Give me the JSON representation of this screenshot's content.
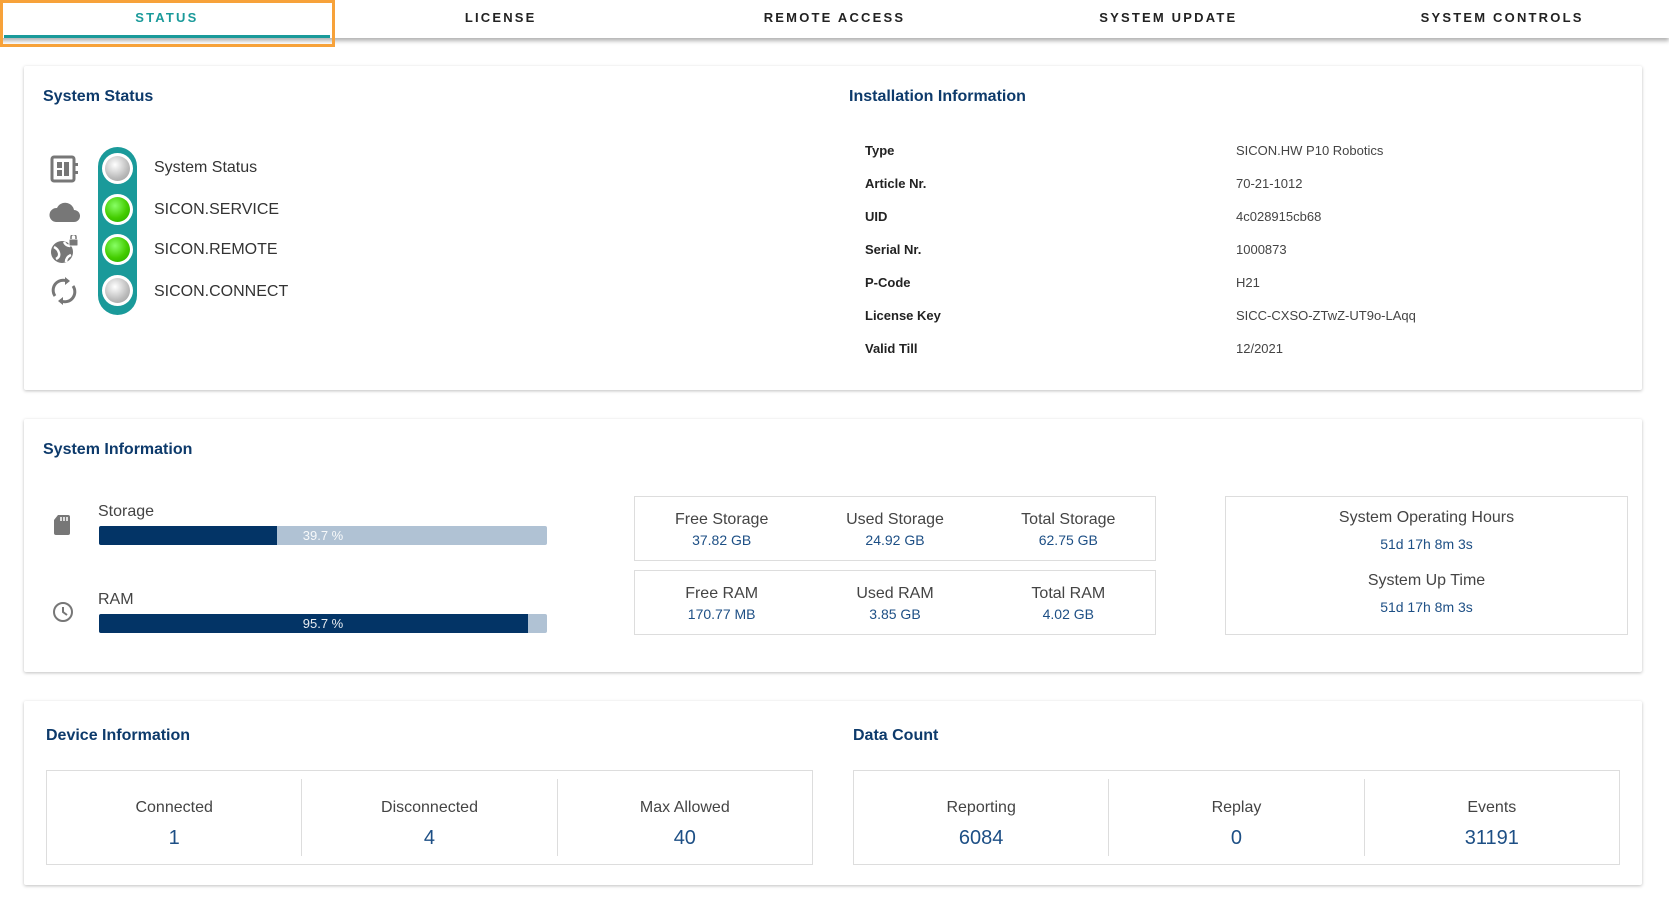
{
  "tabs": [
    {
      "label": "STATUS",
      "active": true
    },
    {
      "label": "LICENSE"
    },
    {
      "label": "REMOTE ACCESS"
    },
    {
      "label": "SYSTEM UPDATE"
    },
    {
      "label": "SYSTEM CONTROLS"
    }
  ],
  "system_status": {
    "title": "System Status",
    "items": [
      {
        "label": "System Status",
        "icon": "dashboard-icon",
        "state": "grey"
      },
      {
        "label": "SICON.SERVICE",
        "icon": "cloud-icon",
        "state": "green"
      },
      {
        "label": "SICON.REMOTE",
        "icon": "globe-lock-icon",
        "state": "green"
      },
      {
        "label": "SICON.CONNECT",
        "icon": "sync-icon",
        "state": "grey"
      }
    ]
  },
  "installation": {
    "title": "Installation Information",
    "rows": [
      {
        "label": "Type",
        "value": "SICON.HW P10 Robotics"
      },
      {
        "label": "Article Nr.",
        "value": "70-21-1012"
      },
      {
        "label": "UID",
        "value": "4c028915cb68"
      },
      {
        "label": "Serial Nr.",
        "value": "1000873"
      },
      {
        "label": "P-Code",
        "value": "H21"
      },
      {
        "label": "License Key",
        "value": "SICC-CXSO-ZTwZ-UT9o-LAqq"
      },
      {
        "label": "Valid Till",
        "value": "12/2021"
      }
    ]
  },
  "system_info": {
    "title": "System Information",
    "storage": {
      "label": "Storage",
      "percent": 39.7,
      "percent_text": "39.7 %"
    },
    "ram": {
      "label": "RAM",
      "percent": 95.7,
      "percent_text": "95.7 %"
    },
    "storage_stats": [
      {
        "label": "Free Storage",
        "value": "37.82 GB"
      },
      {
        "label": "Used Storage",
        "value": "24.92 GB"
      },
      {
        "label": "Total Storage",
        "value": "62.75 GB"
      }
    ],
    "ram_stats": [
      {
        "label": "Free RAM",
        "value": "170.77 MB"
      },
      {
        "label": "Used RAM",
        "value": "3.85 GB"
      },
      {
        "label": "Total RAM",
        "value": "4.02 GB"
      }
    ],
    "operating_hours": {
      "label": "System Operating Hours",
      "value": "51d 17h 8m 3s"
    },
    "up_time": {
      "label": "System Up Time",
      "value": "51d 17h 8m 3s"
    }
  },
  "device_info": {
    "title": "Device Information",
    "cols": [
      {
        "label": "Connected",
        "value": "1"
      },
      {
        "label": "Disconnected",
        "value": "4"
      },
      {
        "label": "Max Allowed",
        "value": "40"
      }
    ]
  },
  "data_count": {
    "title": "Data Count",
    "cols": [
      {
        "label": "Reporting",
        "value": "6084"
      },
      {
        "label": "Replay",
        "value": "0"
      },
      {
        "label": "Events",
        "value": "31191"
      }
    ]
  },
  "colors": {
    "accent": "#1a9a9a",
    "navy": "#033466",
    "focus": "#f7a23a",
    "led_green": "#44cc00"
  }
}
